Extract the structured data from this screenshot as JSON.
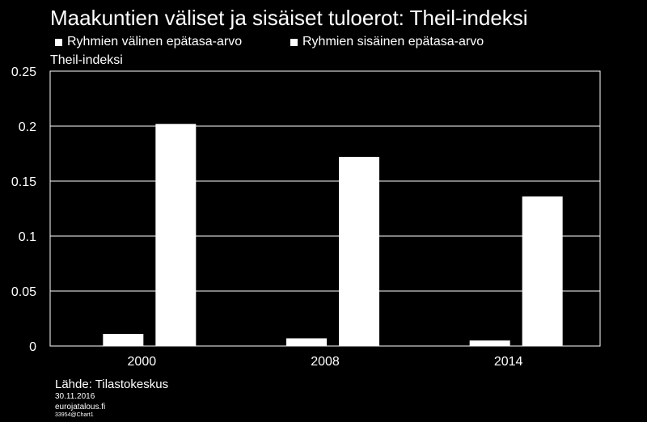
{
  "header": {
    "title": "Maakuntien väliset ja sisäiset tuloerot: Theil-indeksi"
  },
  "footer": {
    "source": "Lähde: Tilastokeskus",
    "date": "30.11.2016",
    "site": "eurojatalous.fi",
    "code": "33954@Chart1"
  },
  "chart_data": {
    "type": "bar",
    "title": "Maakuntien väliset ja sisäiset tuloerot: Theil-indeksi",
    "xlabel": "",
    "ylabel": "Theil-indeksi",
    "categories": [
      "2000",
      "2008",
      "2014"
    ],
    "series": [
      {
        "name": "Ryhmien välinen epätasa-arvo",
        "values": [
          0.011,
          0.007,
          0.005
        ],
        "color": "#ffffff"
      },
      {
        "name": "Ryhmien sisäinen epätasa-arvo",
        "values": [
          0.202,
          0.172,
          0.136
        ],
        "color": "#ffffff"
      }
    ],
    "ylim": [
      0,
      0.25
    ],
    "yticks": [
      0,
      0.05,
      0.1,
      0.15,
      0.2,
      0.25
    ],
    "ytick_labels": [
      "0",
      "0.05",
      "0.1",
      "0.15",
      "0.2",
      "0.25"
    ],
    "grid": true,
    "legend_position": "top"
  }
}
